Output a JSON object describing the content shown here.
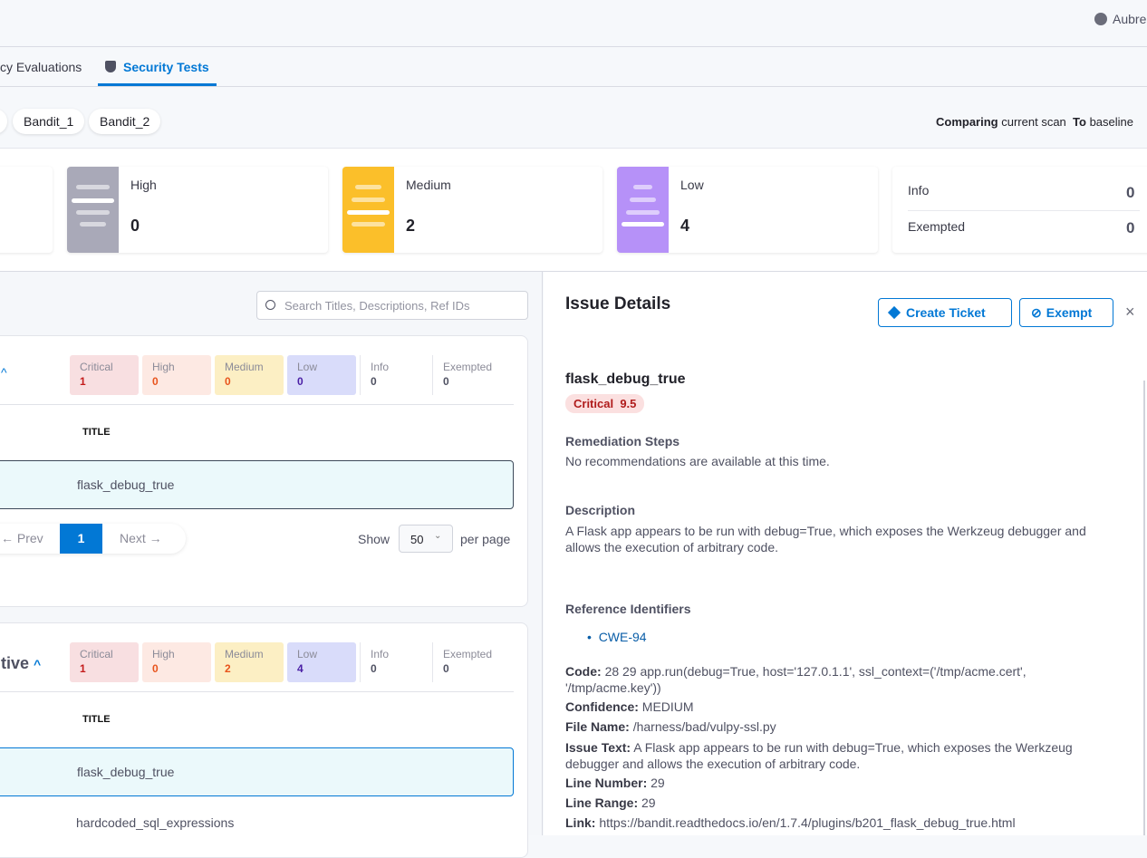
{
  "header": {
    "user": "Aubre"
  },
  "tabs": [
    {
      "label": "cy Evaluations"
    },
    {
      "label": "Security Tests"
    }
  ],
  "chips": [
    "Bandit_1",
    "Bandit_2"
  ],
  "comparison": {
    "prefix": "Comparing",
    "current": "current scan",
    "to": "To",
    "baseline": "baseline"
  },
  "summary": {
    "high": {
      "label": "High",
      "value": "0",
      "color": "#a9a9b8"
    },
    "medium": {
      "label": "Medium",
      "value": "2",
      "color": "#fbbf2a"
    },
    "low": {
      "label": "Low",
      "value": "4",
      "color": "#b691f8"
    },
    "info": {
      "label": "Info",
      "value": "0"
    },
    "exempted": {
      "label": "Exempted",
      "value": "0"
    }
  },
  "search": {
    "placeholder": "Search Titles, Descriptions, Ref IDs"
  },
  "groups": [
    {
      "title": "",
      "counts": [
        {
          "label": "Critical",
          "value": "1"
        },
        {
          "label": "High",
          "value": "0"
        },
        {
          "label": "Medium",
          "value": "0"
        },
        {
          "label": "Low",
          "value": "0"
        },
        {
          "label": "Info",
          "value": "0"
        },
        {
          "label": "Exempted",
          "value": "0"
        }
      ],
      "column": "TITLE",
      "rows": [
        "flask_debug_true"
      ]
    },
    {
      "title": "tive",
      "counts": [
        {
          "label": "Critical",
          "value": "1"
        },
        {
          "label": "High",
          "value": "0"
        },
        {
          "label": "Medium",
          "value": "2"
        },
        {
          "label": "Low",
          "value": "4"
        },
        {
          "label": "Info",
          "value": "0"
        },
        {
          "label": "Exempted",
          "value": "0"
        }
      ],
      "column": "TITLE",
      "rows": [
        "flask_debug_true",
        "hardcoded_sql_expressions"
      ]
    }
  ],
  "pagination": {
    "prev": "Prev",
    "page": "1",
    "next": "Next",
    "show": "Show",
    "per_page_value": "50",
    "per_page": "per page"
  },
  "details": {
    "heading": "Issue Details",
    "create_ticket": "Create Ticket",
    "exempt": "Exempt",
    "issue_title": "flask_debug_true",
    "severity": "Critical",
    "score": "9.5",
    "remediation_label": "Remediation Steps",
    "remediation": "No recommendations are available at this time.",
    "description_label": "Description",
    "description": "A Flask app appears to be run with debug=True, which exposes the Werkzeug debugger and allows the execution of arbitrary code.",
    "refs_label": "Reference Identifiers",
    "refs": [
      "CWE-94"
    ],
    "fields": [
      {
        "k": "Code:",
        "v": "28 29 app.run(debug=True, host='127.0.1.1', ssl_context=('/tmp/acme.cert', '/tmp/acme.key'))"
      },
      {
        "k": "Confidence:",
        "v": "MEDIUM"
      },
      {
        "k": "File Name:",
        "v": "/harness/bad/vulpy-ssl.py"
      },
      {
        "k": "Issue Text:",
        "v": "A Flask app appears to be run with debug=True, which exposes the Werkzeug debugger and allows the execution of arbitrary code."
      },
      {
        "k": "Line Number:",
        "v": "29"
      },
      {
        "k": "Line Range:",
        "v": "29"
      },
      {
        "k": "Link:",
        "v": "https://bandit.readthedocs.io/en/1.7.4/plugins/b201_flask_debug_true.html"
      }
    ]
  }
}
